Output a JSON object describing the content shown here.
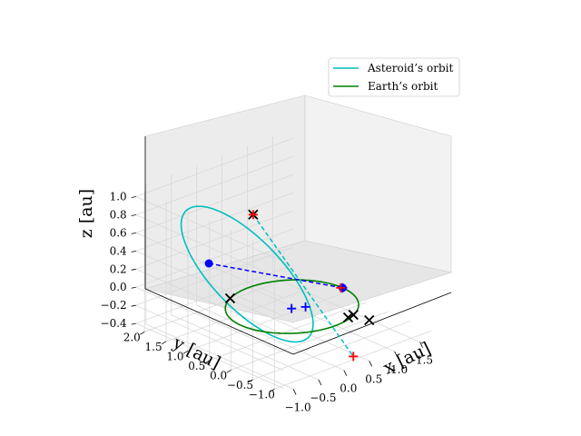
{
  "chart_data": {
    "type": "line",
    "projection": "3d",
    "xlabel": "x [au]",
    "ylabel": "y [au]",
    "zlabel": "z [au]",
    "x_ticks": [
      "−1.0",
      "−0.5",
      "0.0",
      "0.5",
      "1.0",
      "1.5"
    ],
    "y_ticks": [
      "−1.0",
      "−0.5",
      "0.0",
      "0.5",
      "1.0",
      "1.5",
      "2.0"
    ],
    "z_ticks": [
      "−0.4",
      "−0.2",
      "0.0",
      "0.2",
      "0.4",
      "0.6",
      "0.8",
      "1.0"
    ],
    "xlim": [
      -1.2,
      1.9
    ],
    "ylim": [
      -1.2,
      2.2
    ],
    "zlim": [
      -0.45,
      1.1
    ],
    "grid": true,
    "legend_position": "top-right",
    "series": [
      {
        "name": "Asteroid’s orbit",
        "color": "#00bfbf",
        "style": "solid",
        "ellipse": {
          "a": 1.2,
          "e": 0.68,
          "inclination_deg": 38,
          "node_deg": 26,
          "periapsis_deg": 302
        }
      },
      {
        "name": "Earth’s orbit",
        "color": "#008000",
        "style": "solid",
        "ellipse": {
          "a": 1.0,
          "e": 0.0,
          "inclination_deg": 0,
          "node_deg": 0,
          "periapsis_deg": 0
        }
      }
    ],
    "lines": [
      {
        "color": "#00bfbf",
        "style": "dashed",
        "from": [
          -0.27,
          0.58,
          0.95
        ],
        "to": [
          0.46,
          -0.88,
          -0.46
        ]
      },
      {
        "color": "#0000ff",
        "style": "dashed",
        "from": [
          -1.05,
          0.69,
          0.55
        ],
        "to": [
          1.0,
          0.0,
          0.0
        ]
      }
    ],
    "markers": [
      {
        "symbol": "circle",
        "color": "#0000ff",
        "point": [
          -1.05,
          0.69,
          0.55
        ]
      },
      {
        "symbol": "circle",
        "color": "#0000ff",
        "point": [
          1.0,
          0.0,
          0.0
        ]
      },
      {
        "symbol": "x",
        "color": "#000000",
        "point": [
          -0.27,
          0.58,
          0.95
        ]
      },
      {
        "symbol": "x",
        "color": "#000000",
        "point": [
          -0.46,
          0.89,
          0.0
        ]
      },
      {
        "symbol": "x",
        "color": "#000000",
        "point": [
          0.46,
          -0.88,
          0.0
        ]
      },
      {
        "symbol": "x",
        "color": "#000000",
        "point": [
          0.34,
          -0.9,
          0.0
        ]
      },
      {
        "symbol": "x",
        "color": "#000000",
        "point": [
          0.5,
          -1.2,
          0.0
        ]
      },
      {
        "symbol": "plus",
        "color": "#0000ff",
        "point": [
          -0.05,
          -0.05,
          0.0
        ]
      },
      {
        "symbol": "plus",
        "color": "#0000ff",
        "point": [
          0.14,
          -0.15,
          0.0
        ]
      },
      {
        "symbol": "plus",
        "color": "#0000ff",
        "point": [
          1.0,
          0.0,
          0.0
        ]
      },
      {
        "symbol": "plus",
        "color": "#ff0000",
        "point": [
          -0.27,
          0.58,
          0.95
        ]
      },
      {
        "symbol": "plus",
        "color": "#ff0000",
        "point": [
          0.98,
          0.02,
          0.0
        ]
      },
      {
        "symbol": "plus",
        "color": "#ff0000",
        "point": [
          0.46,
          -0.88,
          -0.46
        ]
      }
    ]
  }
}
